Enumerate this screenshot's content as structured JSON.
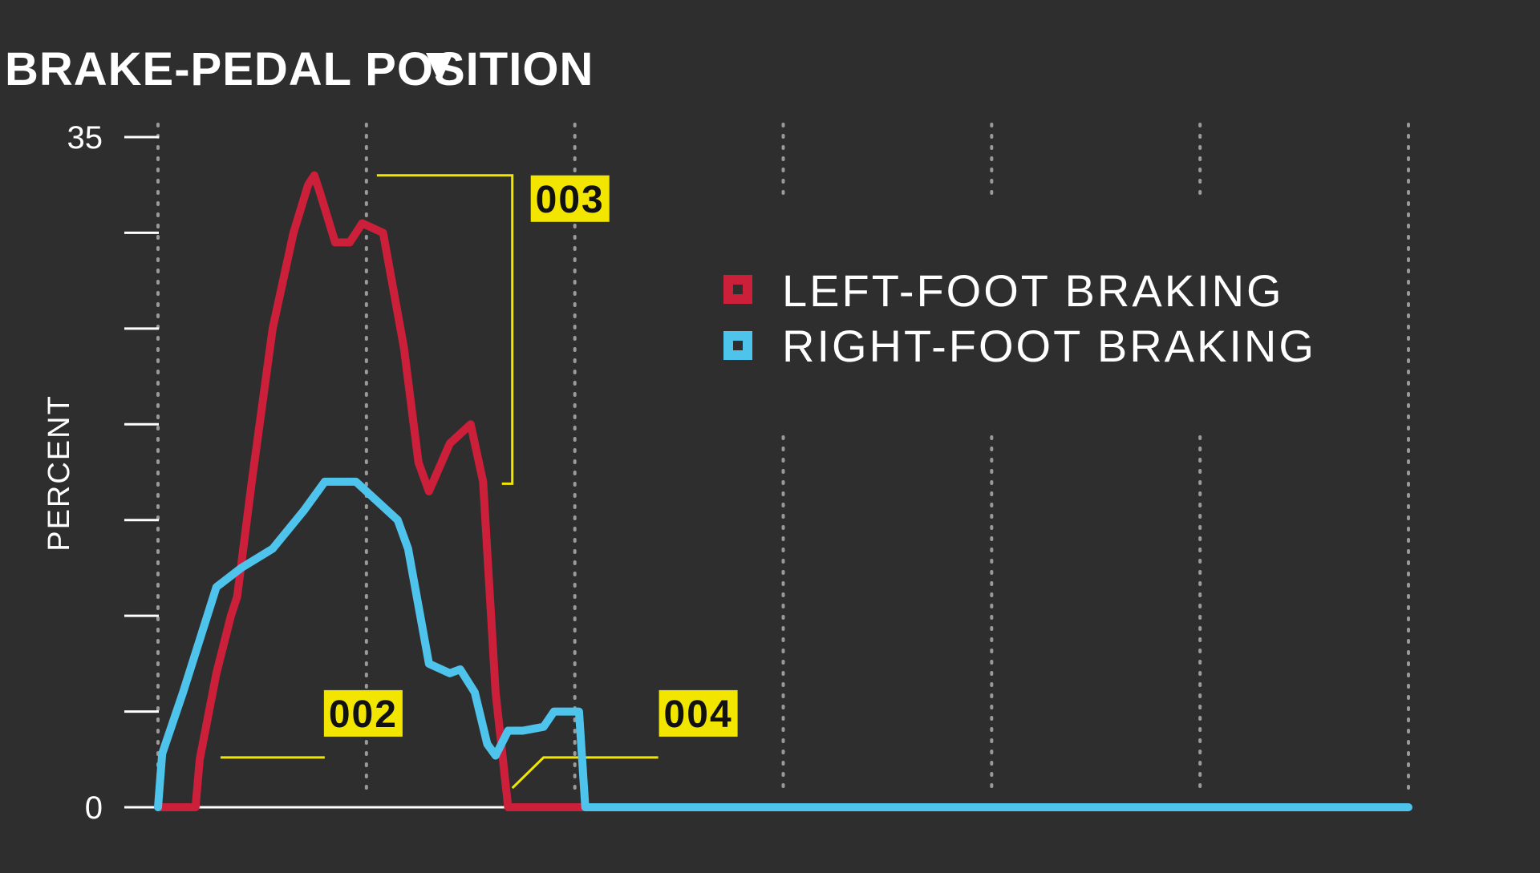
{
  "colors": {
    "background": "#2e2e2e",
    "left_foot": "#cc1f3a",
    "right_foot": "#4ec3ec",
    "callout": "#f2e600",
    "grid": "#9a9a9a",
    "text": "#ffffff"
  },
  "chart_data": {
    "type": "line",
    "title": "BRAKE-PEDAL POSITION",
    "title_icon": "triangle-down-icon",
    "ylabel": "PERCENT",
    "xlabel": "",
    "ylim": [
      0,
      35
    ],
    "y_ticks": [
      0,
      5,
      10,
      15,
      20,
      25,
      30,
      35
    ],
    "y_tick_labels": [
      "0",
      "",
      "",
      "",
      "",
      "",
      "",
      "35"
    ],
    "xlim": [
      0,
      6
    ],
    "x_gridlines": [
      0,
      1,
      2,
      3,
      4,
      5,
      6
    ],
    "grid": "vertical-dotted",
    "legend_position": "right",
    "series": [
      {
        "name": "LEFT-FOOT BRAKING",
        "color": "#cc1f3a",
        "points": [
          [
            0,
            0
          ],
          [
            0.18,
            0
          ],
          [
            0.2,
            2.5
          ],
          [
            0.28,
            7
          ],
          [
            0.35,
            10
          ],
          [
            0.38,
            11
          ],
          [
            0.45,
            17
          ],
          [
            0.55,
            25
          ],
          [
            0.65,
            30
          ],
          [
            0.72,
            32.5
          ],
          [
            0.75,
            33
          ],
          [
            0.78,
            32
          ],
          [
            0.85,
            29.5
          ],
          [
            0.92,
            29.5
          ],
          [
            0.98,
            30.5
          ],
          [
            1.08,
            30
          ],
          [
            1.18,
            24
          ],
          [
            1.25,
            18
          ],
          [
            1.3,
            16.5
          ],
          [
            1.4,
            19
          ],
          [
            1.5,
            20
          ],
          [
            1.56,
            17
          ],
          [
            1.62,
            6
          ],
          [
            1.68,
            0
          ],
          [
            2.1,
            0
          ]
        ]
      },
      {
        "name": "RIGHT-FOOT BRAKING",
        "color": "#4ec3ec",
        "points": [
          [
            0,
            0
          ],
          [
            0.02,
            2.8
          ],
          [
            0.12,
            6
          ],
          [
            0.28,
            11.5
          ],
          [
            0.4,
            12.5
          ],
          [
            0.55,
            13.5
          ],
          [
            0.7,
            15.5
          ],
          [
            0.8,
            17
          ],
          [
            0.95,
            17
          ],
          [
            1.05,
            16
          ],
          [
            1.15,
            15
          ],
          [
            1.2,
            13.5
          ],
          [
            1.3,
            7.5
          ],
          [
            1.4,
            7
          ],
          [
            1.45,
            7.2
          ],
          [
            1.52,
            6
          ],
          [
            1.58,
            3.3
          ],
          [
            1.62,
            2.7
          ],
          [
            1.68,
            4
          ],
          [
            1.75,
            4
          ],
          [
            1.85,
            4.2
          ],
          [
            1.9,
            5
          ],
          [
            2.02,
            5
          ],
          [
            2.05,
            0
          ],
          [
            6,
            0
          ]
        ]
      }
    ],
    "annotations": [
      {
        "label": "002",
        "type": "underline",
        "x_range": [
          0.3,
          0.8
        ],
        "y": 2.6
      },
      {
        "label": "003",
        "type": "bracket",
        "x_from": 1.05,
        "x_to": 1.65,
        "x_bracket": 1.7,
        "y_top": 33,
        "y_bottom": 16.9
      },
      {
        "label": "004",
        "type": "underline-angled",
        "x_start": 1.7,
        "x_mid": 1.85,
        "x_end": 2.4,
        "y_start": 1.0,
        "y_end": 2.6
      }
    ]
  }
}
